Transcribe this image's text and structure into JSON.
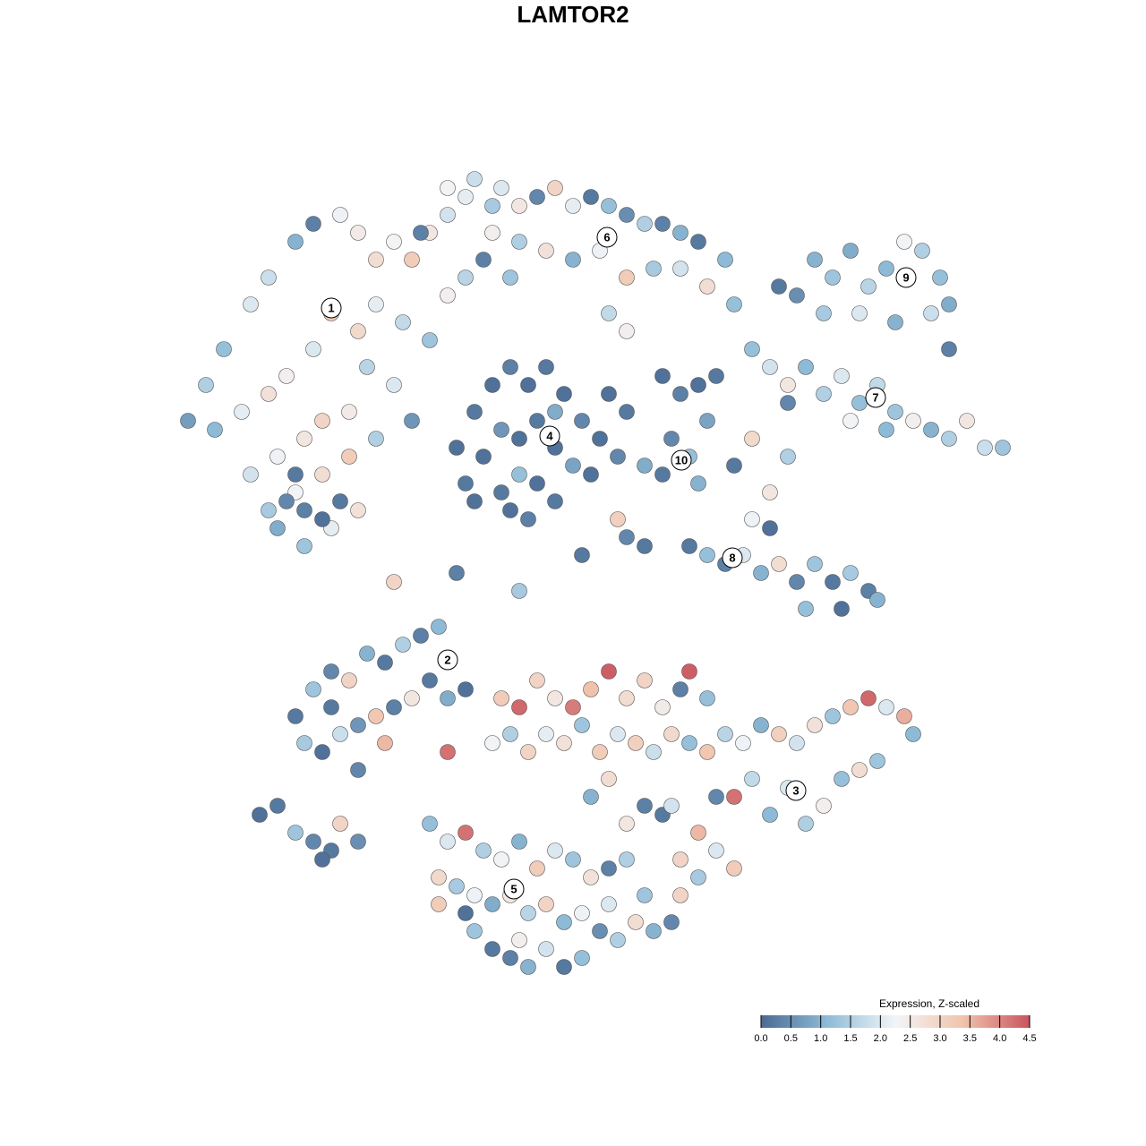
{
  "chart_data": {
    "type": "scatter",
    "title": "LAMTOR2",
    "xlim": [
      20,
      115
    ],
    "ylim": [
      0,
      92
    ],
    "points": [
      [
        23,
        66,
        1.5
      ],
      [
        25,
        70,
        1.2
      ],
      [
        28,
        75,
        2.0
      ],
      [
        30,
        78,
        1.8
      ],
      [
        33,
        82,
        1.0
      ],
      [
        35,
        84,
        0.3
      ],
      [
        38,
        85,
        2.2
      ],
      [
        40,
        83,
        2.5
      ],
      [
        42,
        80,
        2.8
      ],
      [
        44,
        82,
        2.3
      ],
      [
        46,
        80,
        3.2
      ],
      [
        48,
        83,
        2.6
      ],
      [
        50,
        85,
        1.9
      ],
      [
        52,
        87,
        2.1
      ],
      [
        55,
        86,
        1.4
      ],
      [
        24,
        61,
        1.1
      ],
      [
        27,
        63,
        2.1
      ],
      [
        30,
        65,
        2.7
      ],
      [
        32,
        67,
        2.4
      ],
      [
        35,
        70,
        2.0
      ],
      [
        37,
        74,
        3.3
      ],
      [
        40,
        72,
        2.9
      ],
      [
        42,
        75,
        2.1
      ],
      [
        45,
        73,
        1.7
      ],
      [
        48,
        71,
        1.3
      ],
      [
        50,
        76,
        2.4
      ],
      [
        52,
        78,
        1.6
      ],
      [
        28,
        56,
        1.9
      ],
      [
        31,
        58,
        2.2
      ],
      [
        34,
        60,
        2.6
      ],
      [
        36,
        62,
        3.0
      ],
      [
        39,
        63,
        2.5
      ],
      [
        41,
        68,
        1.6
      ],
      [
        44,
        66,
        2.0
      ],
      [
        30,
        52,
        1.4
      ],
      [
        33,
        54,
        2.3
      ],
      [
        36,
        56,
        2.8
      ],
      [
        39,
        58,
        3.2
      ],
      [
        42,
        60,
        1.5
      ],
      [
        34,
        48,
        1.3
      ],
      [
        37,
        50,
        2.1
      ],
      [
        40,
        52,
        2.7
      ],
      [
        31,
        50,
        0.9
      ],
      [
        33,
        56,
        0.2
      ],
      [
        32,
        53,
        0.4
      ],
      [
        34,
        52,
        0.3
      ],
      [
        36,
        51,
        0.1
      ],
      [
        38,
        53,
        0.2
      ],
      [
        46,
        62,
        0.6
      ],
      [
        21,
        62,
        0.7
      ],
      [
        47,
        83,
        0.3
      ],
      [
        50,
        88,
        2.3
      ],
      [
        53,
        89,
        1.8
      ],
      [
        56,
        88,
        2.0
      ],
      [
        58,
        86,
        2.6
      ],
      [
        60,
        87,
        0.4
      ],
      [
        62,
        88,
        3.0
      ],
      [
        64,
        86,
        2.1
      ],
      [
        66,
        87,
        0.2
      ],
      [
        68,
        86,
        1.2
      ],
      [
        70,
        85,
        0.5
      ],
      [
        72,
        84,
        1.5
      ],
      [
        74,
        84,
        0.3
      ],
      [
        76,
        83,
        1.0
      ],
      [
        78,
        82,
        0.2
      ],
      [
        81,
        80,
        1.1
      ],
      [
        55,
        83,
        2.4
      ],
      [
        58,
        82,
        1.5
      ],
      [
        61,
        81,
        2.7
      ],
      [
        64,
        80,
        1.0
      ],
      [
        67,
        81,
        2.2
      ],
      [
        70,
        78,
        3.2
      ],
      [
        73,
        79,
        1.4
      ],
      [
        76,
        79,
        1.9
      ],
      [
        79,
        77,
        2.8
      ],
      [
        82,
        75,
        1.2
      ],
      [
        68,
        74,
        1.7
      ],
      [
        70,
        72,
        2.4
      ],
      [
        54,
        80,
        0.3
      ],
      [
        57,
        78,
        1.3
      ],
      [
        51,
        59,
        0.1
      ],
      [
        53,
        63,
        0.2
      ],
      [
        55,
        66,
        0.1
      ],
      [
        57,
        68,
        0.3
      ],
      [
        59,
        66,
        0.1
      ],
      [
        61,
        68,
        0.2
      ],
      [
        63,
        65,
        0.1
      ],
      [
        65,
        62,
        0.4
      ],
      [
        67,
        60,
        0.1
      ],
      [
        52,
        55,
        0.2
      ],
      [
        54,
        58,
        0.1
      ],
      [
        56,
        61,
        0.6
      ],
      [
        58,
        60,
        0.1
      ],
      [
        60,
        62,
        0.2
      ],
      [
        62,
        59,
        0.1
      ],
      [
        64,
        57,
        0.8
      ],
      [
        66,
        56,
        0.1
      ],
      [
        53,
        53,
        0.1
      ],
      [
        56,
        54,
        0.2
      ],
      [
        58,
        56,
        1.2
      ],
      [
        60,
        55,
        0.1
      ],
      [
        62,
        53,
        0.2
      ],
      [
        57,
        52,
        0.1
      ],
      [
        59,
        51,
        0.3
      ],
      [
        68,
        65,
        0.1
      ],
      [
        70,
        63,
        0.2
      ],
      [
        69,
        58,
        0.4
      ],
      [
        62,
        63,
        0.9
      ],
      [
        74,
        67,
        0.1
      ],
      [
        76,
        65,
        0.3
      ],
      [
        78,
        66,
        0.1
      ],
      [
        79,
        62,
        0.8
      ],
      [
        75,
        60,
        0.4
      ],
      [
        77,
        58,
        1.2
      ],
      [
        74,
        56,
        0.2
      ],
      [
        78,
        55,
        1.0
      ],
      [
        80,
        67,
        0.2
      ],
      [
        72,
        57,
        0.9
      ],
      [
        87,
        77,
        0.2
      ],
      [
        89,
        76,
        0.5
      ],
      [
        91,
        80,
        1.0
      ],
      [
        93,
        78,
        1.3
      ],
      [
        95,
        81,
        0.9
      ],
      [
        97,
        77,
        1.6
      ],
      [
        99,
        79,
        1.1
      ],
      [
        101,
        82,
        2.3
      ],
      [
        103,
        81,
        1.5
      ],
      [
        105,
        78,
        1.2
      ],
      [
        106,
        75,
        0.9
      ],
      [
        104,
        74,
        1.8
      ],
      [
        92,
        74,
        1.4
      ],
      [
        96,
        74,
        2.0
      ],
      [
        100,
        73,
        1.0
      ],
      [
        106,
        70,
        0.3
      ],
      [
        84,
        70,
        1.2
      ],
      [
        86,
        68,
        1.9
      ],
      [
        88,
        66,
        2.6
      ],
      [
        90,
        68,
        1.1
      ],
      [
        92,
        65,
        1.5
      ],
      [
        94,
        67,
        2.0
      ],
      [
        96,
        64,
        1.2
      ],
      [
        98,
        66,
        1.7
      ],
      [
        100,
        63,
        1.3
      ],
      [
        102,
        62,
        2.4
      ],
      [
        104,
        61,
        1.0
      ],
      [
        106,
        60,
        1.5
      ],
      [
        108,
        62,
        2.6
      ],
      [
        110,
        59,
        1.8
      ],
      [
        112,
        59,
        1.3
      ],
      [
        99,
        61,
        1.1
      ],
      [
        95,
        62,
        2.3
      ],
      [
        88,
        64,
        0.4
      ],
      [
        77,
        48,
        0.2
      ],
      [
        79,
        47,
        1.2
      ],
      [
        81,
        46,
        0.3
      ],
      [
        83,
        47,
        2.0
      ],
      [
        85,
        45,
        1.0
      ],
      [
        87,
        46,
        2.8
      ],
      [
        89,
        44,
        0.4
      ],
      [
        91,
        46,
        1.3
      ],
      [
        93,
        44,
        0.2
      ],
      [
        95,
        45,
        1.4
      ],
      [
        97,
        43,
        0.3
      ],
      [
        98,
        42,
        1.0
      ],
      [
        90,
        41,
        1.2
      ],
      [
        94,
        41,
        0.1
      ],
      [
        84,
        51,
        2.2
      ],
      [
        86,
        54,
        2.6
      ],
      [
        82,
        57,
        0.2
      ],
      [
        88,
        58,
        1.5
      ],
      [
        84,
        60,
        2.9
      ],
      [
        86,
        50,
        0.1
      ],
      [
        44,
        44,
        3.0
      ],
      [
        51,
        45,
        0.3
      ],
      [
        58,
        43,
        1.4
      ],
      [
        65,
        47,
        0.2
      ],
      [
        70,
        49,
        0.4
      ],
      [
        69,
        51,
        3.1
      ],
      [
        72,
        48,
        0.2
      ],
      [
        33,
        29,
        0.2
      ],
      [
        35,
        32,
        1.3
      ],
      [
        37,
        34,
        0.4
      ],
      [
        39,
        33,
        3.0
      ],
      [
        41,
        36,
        1.0
      ],
      [
        43,
        35,
        0.2
      ],
      [
        45,
        37,
        1.5
      ],
      [
        47,
        38,
        0.3
      ],
      [
        49,
        39,
        1.1
      ],
      [
        34,
        26,
        1.4
      ],
      [
        36,
        25,
        0.1
      ],
      [
        38,
        27,
        1.8
      ],
      [
        40,
        28,
        0.6
      ],
      [
        42,
        29,
        3.3
      ],
      [
        44,
        30,
        0.3
      ],
      [
        46,
        31,
        2.6
      ],
      [
        48,
        33,
        0.2
      ],
      [
        50,
        31,
        0.9
      ],
      [
        52,
        32,
        0.1
      ],
      [
        40,
        23,
        0.4
      ],
      [
        37,
        30,
        0.2
      ],
      [
        43,
        26,
        3.5
      ],
      [
        50,
        25,
        4.2
      ],
      [
        29,
        18,
        0.1
      ],
      [
        31,
        19,
        0.2
      ],
      [
        33,
        16,
        1.3
      ],
      [
        35,
        15,
        0.4
      ],
      [
        37,
        14,
        0.2
      ],
      [
        38,
        17,
        3.0
      ],
      [
        40,
        15,
        0.5
      ],
      [
        36,
        13,
        0.1
      ],
      [
        56,
        31,
        3.2
      ],
      [
        58,
        30,
        4.3
      ],
      [
        60,
        33,
        3.0
      ],
      [
        62,
        31,
        2.6
      ],
      [
        64,
        30,
        4.1
      ],
      [
        66,
        32,
        3.4
      ],
      [
        68,
        34,
        4.4
      ],
      [
        70,
        31,
        2.8
      ],
      [
        72,
        33,
        3.0
      ],
      [
        74,
        30,
        2.5
      ],
      [
        76,
        32,
        0.3
      ],
      [
        77,
        34,
        4.4
      ],
      [
        79,
        31,
        1.2
      ],
      [
        55,
        26,
        2.3
      ],
      [
        57,
        27,
        1.5
      ],
      [
        59,
        25,
        3.0
      ],
      [
        61,
        27,
        2.1
      ],
      [
        63,
        26,
        2.7
      ],
      [
        65,
        28,
        1.3
      ],
      [
        67,
        25,
        3.2
      ],
      [
        69,
        27,
        2.0
      ],
      [
        71,
        26,
        3.1
      ],
      [
        73,
        25,
        1.8
      ],
      [
        75,
        27,
        2.9
      ],
      [
        77,
        26,
        1.2
      ],
      [
        79,
        25,
        3.3
      ],
      [
        81,
        27,
        1.6
      ],
      [
        83,
        26,
        2.2
      ],
      [
        85,
        28,
        1.0
      ],
      [
        87,
        27,
        3.1
      ],
      [
        89,
        26,
        1.9
      ],
      [
        91,
        28,
        2.7
      ],
      [
        93,
        29,
        1.3
      ],
      [
        95,
        30,
        3.3
      ],
      [
        97,
        31,
        4.3
      ],
      [
        99,
        30,
        2.0
      ],
      [
        101,
        29,
        3.6
      ],
      [
        102,
        27,
        1.1
      ],
      [
        80,
        20,
        0.4
      ],
      [
        82,
        20,
        4.2
      ],
      [
        84,
        22,
        1.7
      ],
      [
        86,
        18,
        1.1
      ],
      [
        88,
        21,
        2.0
      ],
      [
        90,
        17,
        1.5
      ],
      [
        92,
        19,
        2.4
      ],
      [
        94,
        22,
        1.2
      ],
      [
        96,
        23,
        2.8
      ],
      [
        98,
        24,
        1.3
      ],
      [
        78,
        16,
        3.5
      ],
      [
        80,
        14,
        2.0
      ],
      [
        82,
        12,
        3.2
      ],
      [
        76,
        13,
        3.0
      ],
      [
        78,
        11,
        1.4
      ],
      [
        74,
        18,
        0.2
      ],
      [
        72,
        19,
        0.3
      ],
      [
        68,
        22,
        2.8
      ],
      [
        66,
        20,
        1.0
      ],
      [
        70,
        17,
        2.6
      ],
      [
        75,
        19,
        1.9
      ],
      [
        48,
        17,
        1.2
      ],
      [
        50,
        15,
        2.0
      ],
      [
        52,
        16,
        4.2
      ],
      [
        54,
        14,
        1.5
      ],
      [
        56,
        13,
        2.3
      ],
      [
        58,
        15,
        1.0
      ],
      [
        60,
        12,
        3.2
      ],
      [
        62,
        14,
        2.0
      ],
      [
        64,
        13,
        1.3
      ],
      [
        66,
        11,
        2.7
      ],
      [
        68,
        12,
        0.3
      ],
      [
        70,
        13,
        1.5
      ],
      [
        49,
        11,
        2.9
      ],
      [
        51,
        10,
        1.4
      ],
      [
        53,
        9,
        2.2
      ],
      [
        55,
        8,
        0.9
      ],
      [
        57,
        9,
        2.6
      ],
      [
        59,
        7,
        1.6
      ],
      [
        61,
        8,
        3.0
      ],
      [
        63,
        6,
        1.1
      ],
      [
        65,
        7,
        2.2
      ],
      [
        67,
        5,
        0.5
      ],
      [
        69,
        4,
        1.5
      ],
      [
        71,
        6,
        2.8
      ],
      [
        73,
        5,
        1.0
      ],
      [
        75,
        6,
        0.4
      ],
      [
        53,
        5,
        1.3
      ],
      [
        55,
        3,
        0.2
      ],
      [
        57,
        2,
        0.3
      ],
      [
        59,
        1,
        1.0
      ],
      [
        61,
        3,
        1.9
      ],
      [
        63,
        1,
        0.2
      ],
      [
        65,
        2,
        1.2
      ],
      [
        52,
        7,
        0.1
      ],
      [
        58,
        4,
        2.4
      ],
      [
        68,
        8,
        2.0
      ],
      [
        72,
        9,
        1.3
      ],
      [
        76,
        9,
        3.0
      ],
      [
        49,
        8,
        3.2
      ]
    ],
    "clusters": [
      {
        "label": "1",
        "x": 37,
        "y": 74.6
      },
      {
        "label": "2",
        "x": 50,
        "y": 35.3
      },
      {
        "label": "3",
        "x": 88.9,
        "y": 20.7
      },
      {
        "label": "4",
        "x": 61.4,
        "y": 60.3
      },
      {
        "label": "5",
        "x": 57.4,
        "y": 9.7
      },
      {
        "label": "6",
        "x": 67.8,
        "y": 82.5
      },
      {
        "label": "7",
        "x": 97.8,
        "y": 64.6
      },
      {
        "label": "8",
        "x": 81.8,
        "y": 46.7
      },
      {
        "label": "9",
        "x": 101.2,
        "y": 78
      },
      {
        "label": "10",
        "x": 76.1,
        "y": 57.6
      }
    ],
    "colorbar": {
      "title": "Expression, Z-scaled",
      "clim": [
        0,
        4.5
      ],
      "colors": [
        "#4a6a94",
        "#8fbcd8",
        "#f2f5f7",
        "#f1c4ad",
        "#c9545e"
      ],
      "ticks": [
        {
          "value": 0,
          "label": "0.0"
        },
        0.5,
        {
          "value": 1,
          "label": "1.0"
        },
        1.5,
        {
          "value": 2,
          "label": "2.0"
        },
        2.5,
        {
          "value": 3,
          "label": "3.0"
        },
        3.5,
        {
          "value": 4,
          "label": "4.0"
        },
        4.5
      ]
    }
  }
}
